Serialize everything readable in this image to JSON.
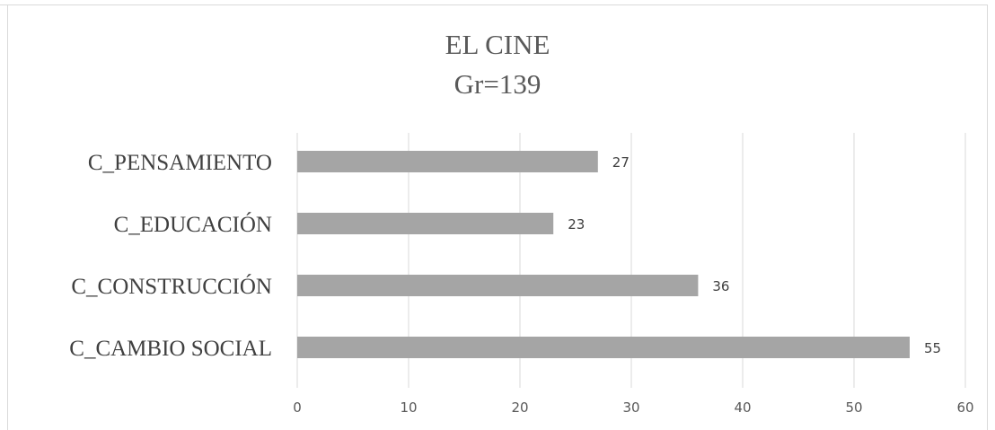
{
  "chart_data": {
    "type": "bar",
    "orientation": "horizontal",
    "title": "EL CINE",
    "subtitle": "Gr=139",
    "categories": [
      "C_PENSAMIENTO",
      "C_EDUCACIÓN",
      "C_CONSTRUCCIÓN",
      "C_CAMBIO SOCIAL"
    ],
    "values": [
      27,
      23,
      36,
      55
    ],
    "data_labels": [
      "27",
      "23",
      "36",
      "55"
    ],
    "xlim": [
      0,
      60
    ],
    "x_ticks": [
      0,
      10,
      20,
      30,
      40,
      50,
      60
    ],
    "xlabel": "",
    "ylabel": "",
    "grid": true,
    "legend": "none",
    "bar_color": "#a5a5a5",
    "gridline_color": "#d9d9d9"
  }
}
